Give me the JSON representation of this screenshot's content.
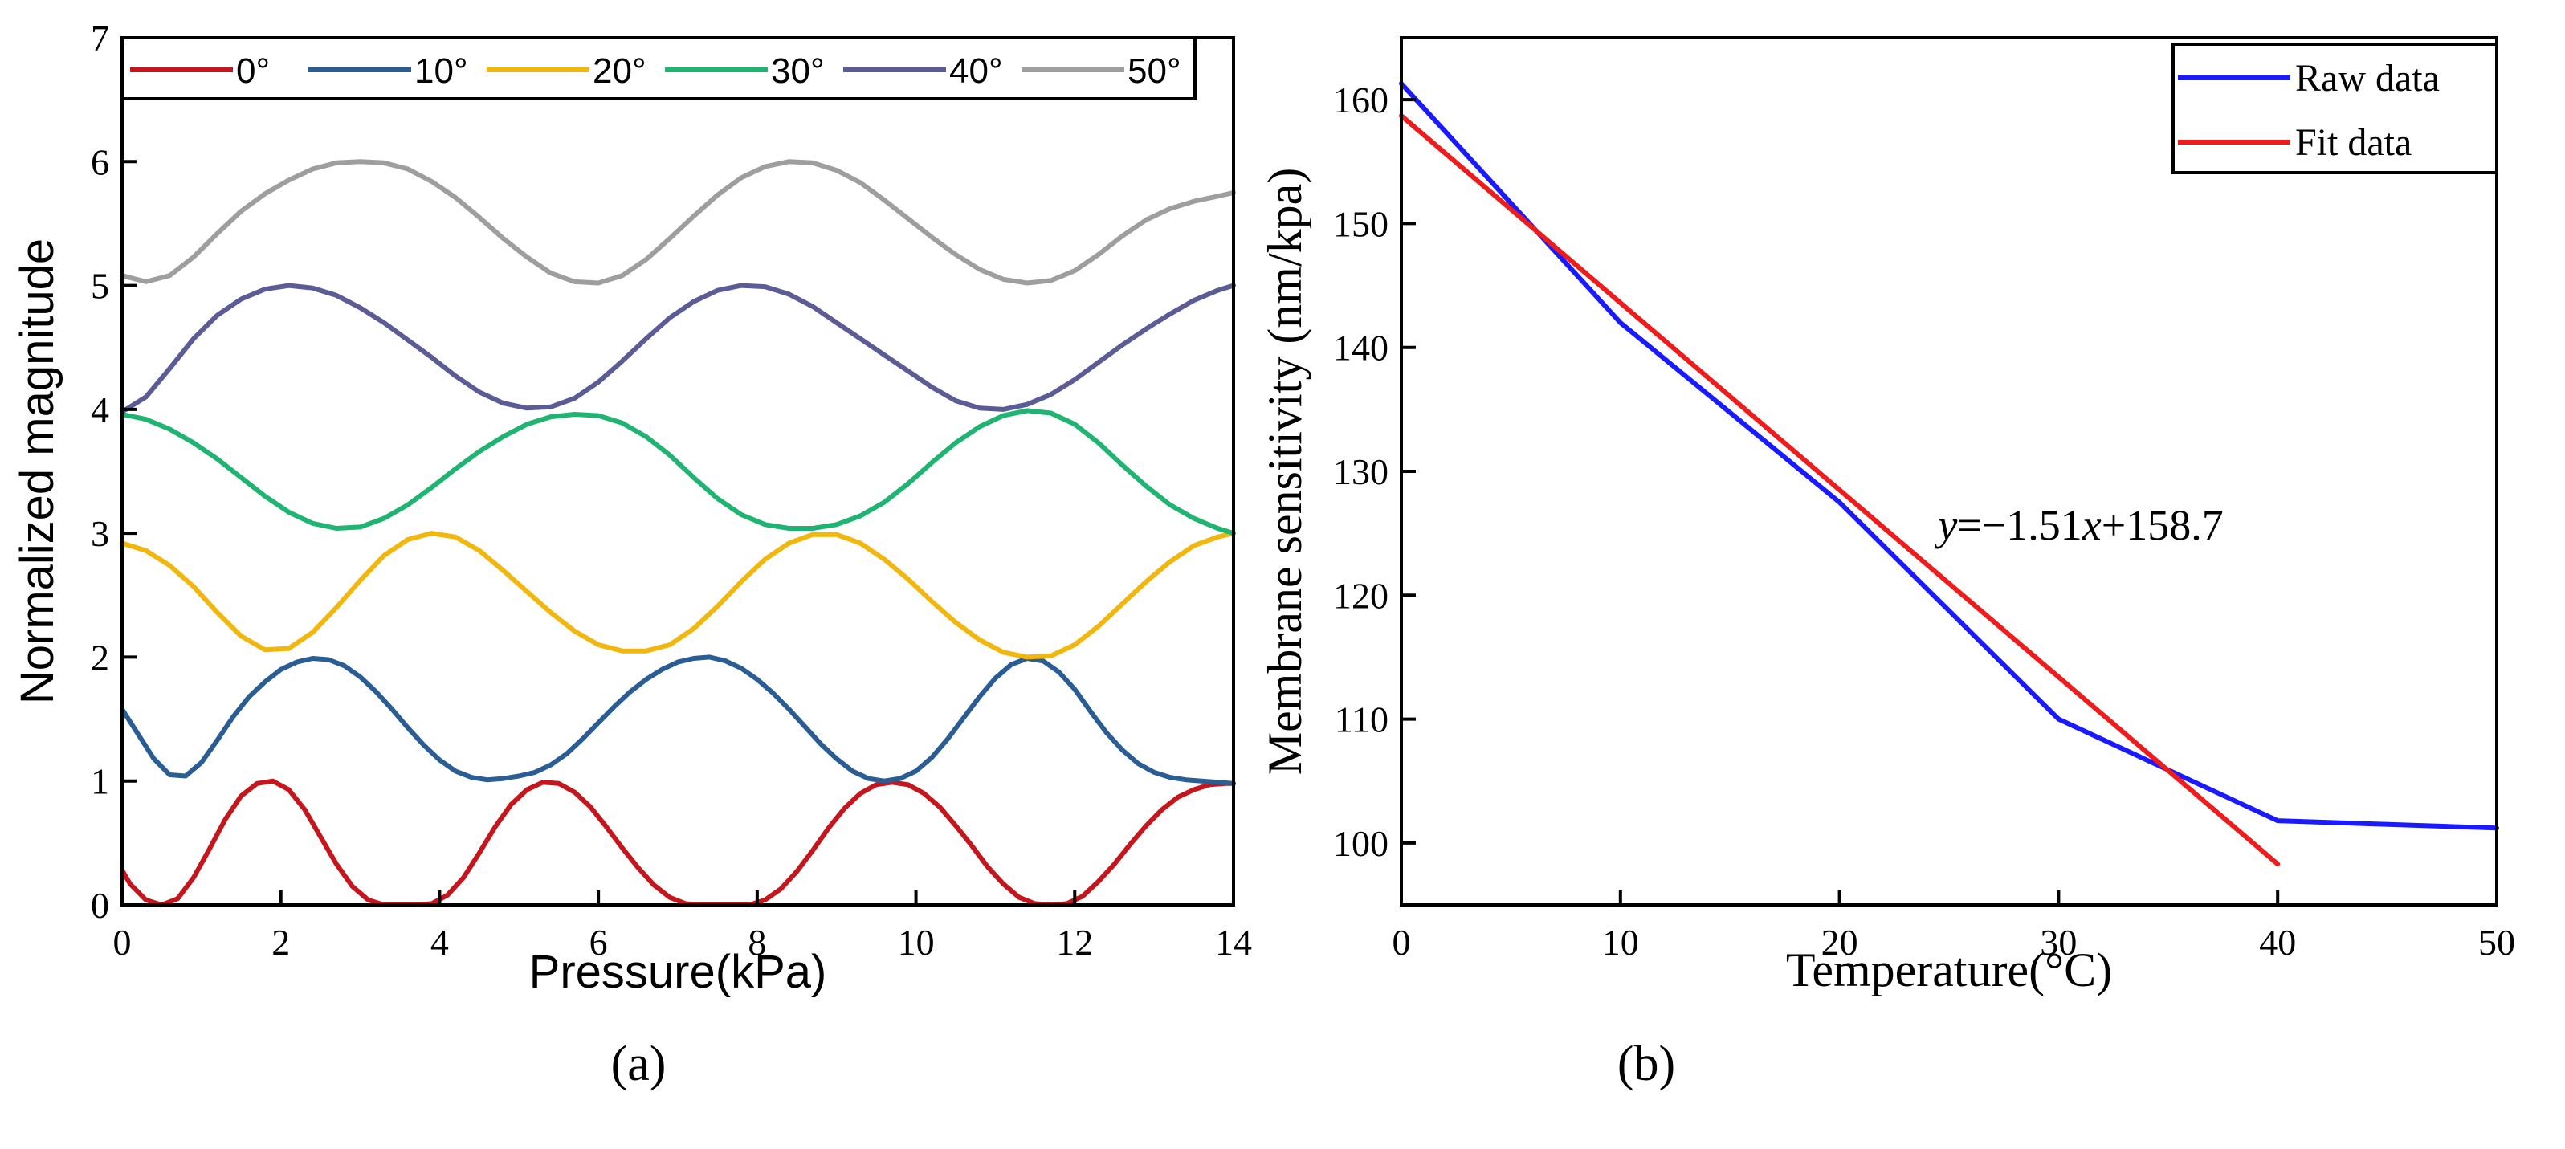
{
  "chart_data": [
    {
      "type": "line",
      "panel_label": "(a)",
      "xlabel": "Pressure(kPa)",
      "ylabel": "Normalized magnitude",
      "xlim": [
        0,
        14
      ],
      "ylim": [
        0,
        7
      ],
      "xticks": [
        "0",
        "2",
        "4",
        "6",
        "8",
        "10",
        "12",
        "14"
      ],
      "yticks": [
        "0",
        "1",
        "2",
        "3",
        "4",
        "5",
        "6",
        "7"
      ],
      "legend_position": "top",
      "series": [
        {
          "name": "0°",
          "color": "#c4161c",
          "x": [
            0,
            0.1,
            0.3,
            0.5,
            0.7,
            0.9,
            1.1,
            1.3,
            1.5,
            1.7,
            1.9,
            2.1,
            2.3,
            2.5,
            2.7,
            2.9,
            3.1,
            3.3,
            3.5,
            3.7,
            3.9,
            4.1,
            4.3,
            4.5,
            4.7,
            4.9,
            5.1,
            5.3,
            5.5,
            5.7,
            5.9,
            6.1,
            6.3,
            6.5,
            6.7,
            6.9,
            7.1,
            7.3,
            7.5,
            7.7,
            7.9,
            8.1,
            8.3,
            8.5,
            8.7,
            8.9,
            9.1,
            9.3,
            9.5,
            9.7,
            9.9,
            10.1,
            10.3,
            10.5,
            10.7,
            10.9,
            11.1,
            11.3,
            11.5,
            11.7,
            11.9,
            12.1,
            12.3,
            12.5,
            12.7,
            12.9,
            13.1,
            13.3,
            13.5,
            13.7,
            13.9,
            14
          ],
          "y": [
            0.28,
            0.17,
            0.04,
            0.0,
            0.05,
            0.22,
            0.45,
            0.69,
            0.88,
            0.98,
            1.0,
            0.93,
            0.77,
            0.55,
            0.33,
            0.15,
            0.04,
            0.0,
            0.0,
            0.0,
            0.01,
            0.08,
            0.22,
            0.42,
            0.63,
            0.81,
            0.93,
            0.99,
            0.98,
            0.91,
            0.79,
            0.63,
            0.46,
            0.3,
            0.16,
            0.06,
            0.01,
            0.0,
            0.0,
            0.0,
            0.0,
            0.04,
            0.13,
            0.27,
            0.44,
            0.62,
            0.78,
            0.9,
            0.97,
            0.99,
            0.97,
            0.9,
            0.79,
            0.64,
            0.48,
            0.31,
            0.17,
            0.06,
            0.01,
            0.0,
            0.01,
            0.07,
            0.19,
            0.33,
            0.49,
            0.64,
            0.77,
            0.87,
            0.93,
            0.97,
            0.98,
            0.98
          ]
        },
        {
          "name": "10°",
          "color": "#2a5d94",
          "x": [
            0,
            0.2,
            0.4,
            0.6,
            0.8,
            1.0,
            1.2,
            1.4,
            1.6,
            1.8,
            2.0,
            2.2,
            2.4,
            2.6,
            2.8,
            3.0,
            3.2,
            3.4,
            3.6,
            3.8,
            4.0,
            4.2,
            4.4,
            4.6,
            4.8,
            5.0,
            5.2,
            5.4,
            5.6,
            5.8,
            6.0,
            6.2,
            6.4,
            6.6,
            6.8,
            7.0,
            7.2,
            7.4,
            7.6,
            7.8,
            8.0,
            8.2,
            8.4,
            8.6,
            8.8,
            9.0,
            9.2,
            9.4,
            9.6,
            9.8,
            10.0,
            10.2,
            10.4,
            10.6,
            10.8,
            11.0,
            11.2,
            11.4,
            11.6,
            11.8,
            12.0,
            12.2,
            12.4,
            12.6,
            12.8,
            13.0,
            13.2,
            13.4,
            13.6,
            13.8,
            14
          ],
          "y": [
            1.58,
            1.38,
            1.18,
            1.05,
            1.04,
            1.15,
            1.33,
            1.52,
            1.68,
            1.8,
            1.9,
            1.96,
            1.99,
            1.98,
            1.93,
            1.84,
            1.72,
            1.58,
            1.43,
            1.29,
            1.17,
            1.08,
            1.03,
            1.01,
            1.02,
            1.04,
            1.07,
            1.13,
            1.22,
            1.34,
            1.47,
            1.6,
            1.72,
            1.82,
            1.9,
            1.96,
            1.99,
            2.0,
            1.97,
            1.91,
            1.82,
            1.71,
            1.58,
            1.44,
            1.3,
            1.18,
            1.08,
            1.02,
            1.0,
            1.02,
            1.08,
            1.19,
            1.34,
            1.51,
            1.68,
            1.83,
            1.94,
            1.99,
            1.97,
            1.88,
            1.74,
            1.56,
            1.39,
            1.25,
            1.14,
            1.07,
            1.03,
            1.01,
            1.0,
            0.99,
            0.98
          ]
        },
        {
          "name": "20°",
          "color": "#f2b70f",
          "x": [
            0,
            0.3,
            0.6,
            0.9,
            1.2,
            1.5,
            1.8,
            2.1,
            2.4,
            2.7,
            3.0,
            3.3,
            3.6,
            3.9,
            4.2,
            4.5,
            4.8,
            5.1,
            5.4,
            5.7,
            6.0,
            6.3,
            6.6,
            6.9,
            7.2,
            7.5,
            7.8,
            8.1,
            8.4,
            8.7,
            9.0,
            9.3,
            9.6,
            9.9,
            10.2,
            10.5,
            10.8,
            11.1,
            11.4,
            11.7,
            12.0,
            12.3,
            12.6,
            12.9,
            13.2,
            13.5,
            13.8,
            14
          ],
          "y": [
            2.92,
            2.86,
            2.74,
            2.57,
            2.36,
            2.17,
            2.06,
            2.07,
            2.2,
            2.4,
            2.62,
            2.82,
            2.95,
            3.0,
            2.97,
            2.86,
            2.7,
            2.53,
            2.36,
            2.21,
            2.1,
            2.05,
            2.05,
            2.1,
            2.23,
            2.41,
            2.61,
            2.79,
            2.92,
            2.99,
            2.99,
            2.92,
            2.79,
            2.63,
            2.45,
            2.28,
            2.14,
            2.04,
            2.0,
            2.01,
            2.1,
            2.25,
            2.43,
            2.61,
            2.77,
            2.9,
            2.97,
            3.0
          ]
        },
        {
          "name": "30°",
          "color": "#20b472",
          "x": [
            0,
            0.3,
            0.6,
            0.9,
            1.2,
            1.5,
            1.8,
            2.1,
            2.4,
            2.7,
            3.0,
            3.3,
            3.6,
            3.9,
            4.2,
            4.5,
            4.8,
            5.1,
            5.4,
            5.7,
            6.0,
            6.3,
            6.6,
            6.9,
            7.2,
            7.5,
            7.8,
            8.1,
            8.4,
            8.7,
            9.0,
            9.3,
            9.6,
            9.9,
            10.2,
            10.5,
            10.8,
            11.1,
            11.4,
            11.7,
            12.0,
            12.3,
            12.6,
            12.9,
            13.2,
            13.5,
            13.8,
            14
          ],
          "y": [
            3.96,
            3.92,
            3.84,
            3.73,
            3.6,
            3.45,
            3.3,
            3.17,
            3.08,
            3.04,
            3.05,
            3.12,
            3.23,
            3.37,
            3.52,
            3.66,
            3.78,
            3.88,
            3.94,
            3.96,
            3.95,
            3.89,
            3.78,
            3.63,
            3.45,
            3.28,
            3.15,
            3.07,
            3.04,
            3.04,
            3.07,
            3.14,
            3.25,
            3.4,
            3.57,
            3.73,
            3.86,
            3.95,
            3.99,
            3.97,
            3.88,
            3.73,
            3.55,
            3.38,
            3.23,
            3.12,
            3.04,
            3.0
          ]
        },
        {
          "name": "40°",
          "color": "#5b5b96",
          "x": [
            0,
            0.3,
            0.6,
            0.9,
            1.2,
            1.5,
            1.8,
            2.1,
            2.4,
            2.7,
            3.0,
            3.3,
            3.6,
            3.9,
            4.2,
            4.5,
            4.8,
            5.1,
            5.4,
            5.7,
            6.0,
            6.3,
            6.6,
            6.9,
            7.2,
            7.5,
            7.8,
            8.1,
            8.4,
            8.7,
            9.0,
            9.3,
            9.6,
            9.9,
            10.2,
            10.5,
            10.8,
            11.1,
            11.4,
            11.7,
            12.0,
            12.3,
            12.6,
            12.9,
            13.2,
            13.5,
            13.8,
            14
          ],
          "y": [
            3.98,
            4.1,
            4.33,
            4.57,
            4.76,
            4.89,
            4.97,
            5.0,
            4.98,
            4.92,
            4.82,
            4.7,
            4.56,
            4.42,
            4.27,
            4.14,
            4.05,
            4.01,
            4.02,
            4.09,
            4.22,
            4.39,
            4.57,
            4.74,
            4.87,
            4.96,
            5.0,
            4.99,
            4.93,
            4.83,
            4.7,
            4.57,
            4.44,
            4.31,
            4.18,
            4.07,
            4.01,
            4.0,
            4.04,
            4.12,
            4.24,
            4.38,
            4.52,
            4.65,
            4.77,
            4.88,
            4.96,
            5.0
          ]
        },
        {
          "name": "50°",
          "color": "#9e9e9e",
          "x": [
            0,
            0.3,
            0.6,
            0.9,
            1.2,
            1.5,
            1.8,
            2.1,
            2.4,
            2.7,
            3.0,
            3.3,
            3.6,
            3.9,
            4.2,
            4.5,
            4.8,
            5.1,
            5.4,
            5.7,
            6.0,
            6.3,
            6.6,
            6.9,
            7.2,
            7.5,
            7.8,
            8.1,
            8.4,
            8.7,
            9.0,
            9.3,
            9.6,
            9.9,
            10.2,
            10.5,
            10.8,
            11.1,
            11.4,
            11.7,
            12.0,
            12.3,
            12.6,
            12.9,
            13.2,
            13.5,
            13.8,
            14
          ],
          "y": [
            5.08,
            5.03,
            5.08,
            5.23,
            5.42,
            5.6,
            5.74,
            5.85,
            5.94,
            5.99,
            6.0,
            5.99,
            5.94,
            5.84,
            5.71,
            5.55,
            5.38,
            5.23,
            5.1,
            5.03,
            5.02,
            5.08,
            5.21,
            5.38,
            5.56,
            5.73,
            5.87,
            5.96,
            6.0,
            5.99,
            5.93,
            5.83,
            5.69,
            5.54,
            5.39,
            5.25,
            5.13,
            5.05,
            5.02,
            5.04,
            5.12,
            5.25,
            5.4,
            5.53,
            5.62,
            5.68,
            5.72,
            5.75
          ]
        }
      ]
    },
    {
      "type": "line",
      "panel_label": "(b)",
      "xlabel": "Temperature(°C)",
      "ylabel": "Membrane sensitivity (nm/kpa)",
      "xlim": [
        0,
        50
      ],
      "ylim": [
        95,
        165
      ],
      "xticks": [
        "0",
        "10",
        "20",
        "30",
        "40",
        "50"
      ],
      "yticks": [
        "100",
        "110",
        "120",
        "130",
        "140",
        "150",
        "160"
      ],
      "ytick_values": [
        100,
        110,
        120,
        130,
        140,
        150,
        160
      ],
      "legend_position": "top-right",
      "annotation": {
        "var_y": "y",
        "eq_mid": "=−1.51",
        "var_x": "x",
        "eq_tail": "+158.7",
        "x": 24.5,
        "y": 124.5
      },
      "series": [
        {
          "name": "Raw data",
          "color": "#1a1aff",
          "x": [
            0,
            10,
            20,
            30,
            40,
            50
          ],
          "y": [
            161.3,
            142.0,
            127.5,
            110.0,
            101.8,
            101.2
          ]
        },
        {
          "name": "Fit data",
          "color": "#ee1c1c",
          "x": [
            0,
            40
          ],
          "y": [
            158.7,
            98.3
          ]
        }
      ]
    }
  ]
}
